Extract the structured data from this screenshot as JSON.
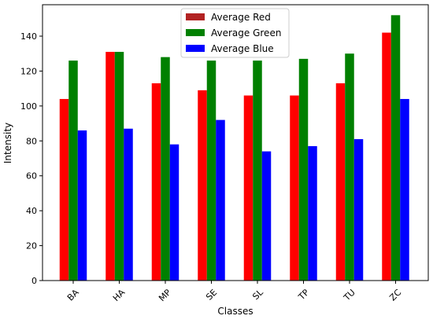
{
  "chart_data": {
    "type": "bar",
    "title": "",
    "xlabel": "Classes",
    "ylabel": "Intensity",
    "categories": [
      "BA",
      "HA",
      "MP",
      "SE",
      "SL",
      "TP",
      "TU",
      "ZC"
    ],
    "ylim": [
      0,
      158
    ],
    "yticks": [
      0,
      20,
      40,
      60,
      80,
      100,
      120,
      140
    ],
    "grid": false,
    "legend_placement": "top-center",
    "series": [
      {
        "name": "Average Red",
        "color": "#ff0000",
        "legend_color": "#b22222",
        "values": [
          104,
          131,
          113,
          109,
          106,
          106,
          113,
          142
        ]
      },
      {
        "name": "Average Green",
        "color": "#008000",
        "legend_color": "#008000",
        "values": [
          126,
          131,
          128,
          126,
          126,
          127,
          130,
          152
        ]
      },
      {
        "name": "Average Blue",
        "color": "#0000ff",
        "legend_color": "#0000ff",
        "values": [
          86,
          87,
          78,
          92,
          74,
          77,
          81,
          104
        ]
      }
    ]
  }
}
